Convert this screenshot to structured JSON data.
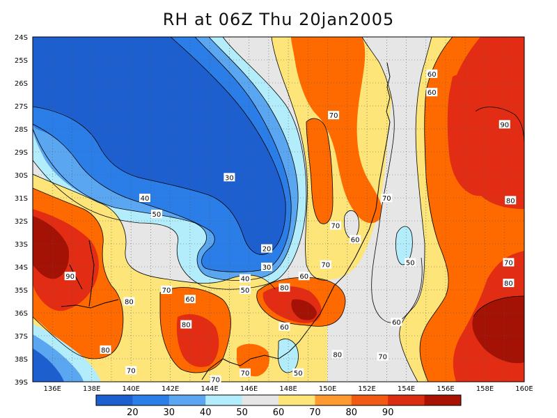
{
  "title": "RH at 06Z Thu 20jan2005",
  "map": {
    "lat_labels": [
      "24S",
      "25S",
      "26S",
      "27S",
      "28S",
      "29S",
      "30S",
      "31S",
      "32S",
      "33S",
      "34S",
      "35S",
      "36S",
      "37S",
      "38S",
      "39S"
    ],
    "lon_labels": [
      "136E",
      "138E",
      "140E",
      "142E",
      "144E",
      "146E",
      "148E",
      "150E",
      "152E",
      "154E",
      "156E",
      "158E",
      "160E"
    ],
    "lon_range": [
      135,
      160
    ],
    "lat_range": [
      -24,
      -39
    ],
    "grid": true
  },
  "contour_labels": [
    {
      "text": "30",
      "lon": 145.0,
      "lat": -30.1
    },
    {
      "text": "40",
      "lon": 140.7,
      "lat": -31.0
    },
    {
      "text": "50",
      "lon": 141.3,
      "lat": -31.7
    },
    {
      "text": "20",
      "lon": 146.9,
      "lat": -33.2
    },
    {
      "text": "30",
      "lon": 146.9,
      "lat": -34.0
    },
    {
      "text": "40",
      "lon": 145.8,
      "lat": -34.5
    },
    {
      "text": "50",
      "lon": 145.8,
      "lat": -35.0
    },
    {
      "text": "60",
      "lon": 143.0,
      "lat": -35.4
    },
    {
      "text": "70",
      "lon": 141.8,
      "lat": -35.0
    },
    {
      "text": "80",
      "lon": 142.8,
      "lat": -36.5
    },
    {
      "text": "80",
      "lon": 147.8,
      "lat": -34.9
    },
    {
      "text": "60",
      "lon": 148.8,
      "lat": -34.4
    },
    {
      "text": "70",
      "lon": 149.9,
      "lat": -33.9
    },
    {
      "text": "60",
      "lon": 147.8,
      "lat": -36.6
    },
    {
      "text": "70",
      "lon": 150.3,
      "lat": -27.4
    },
    {
      "text": "70",
      "lon": 150.4,
      "lat": -32.2
    },
    {
      "text": "60",
      "lon": 151.4,
      "lat": -32.8
    },
    {
      "text": "70",
      "lon": 153.0,
      "lat": -31.0
    },
    {
      "text": "60",
      "lon": 155.3,
      "lat": -25.6
    },
    {
      "text": "60",
      "lon": 155.3,
      "lat": -26.4
    },
    {
      "text": "90",
      "lon": 159.0,
      "lat": -27.8
    },
    {
      "text": "80",
      "lon": 159.3,
      "lat": -31.1
    },
    {
      "text": "70",
      "lon": 159.2,
      "lat": -33.8
    },
    {
      "text": "80",
      "lon": 159.2,
      "lat": -34.7
    },
    {
      "text": "50",
      "lon": 154.2,
      "lat": -33.8
    },
    {
      "text": "60",
      "lon": 153.5,
      "lat": -36.4
    },
    {
      "text": "70",
      "lon": 152.8,
      "lat": -37.9
    },
    {
      "text": "80",
      "lon": 150.5,
      "lat": -37.8
    },
    {
      "text": "50",
      "lon": 148.5,
      "lat": -38.6
    },
    {
      "text": "70",
      "lon": 145.8,
      "lat": -38.6
    },
    {
      "text": "70",
      "lon": 144.3,
      "lat": -38.9
    },
    {
      "text": "80",
      "lon": 138.7,
      "lat": -37.6
    },
    {
      "text": "70",
      "lon": 140.0,
      "lat": -38.5
    },
    {
      "text": "80",
      "lon": 139.9,
      "lat": -35.5
    },
    {
      "text": "90",
      "lon": 136.9,
      "lat": -34.4
    }
  ],
  "colorbar": {
    "labels": [
      "20",
      "30",
      "40",
      "50",
      "60",
      "70",
      "80",
      "90"
    ],
    "colors": [
      "#1e5fcf",
      "#2b7ee8",
      "#5aa6f0",
      "#b3ecfb",
      "#e6e6e6",
      "#fde57a",
      "#fe9a2f",
      "#f05a12",
      "#d92e10",
      "#a81203"
    ]
  },
  "colors": {
    "c20": "#1e5fcf",
    "c30": "#2b7ee8",
    "c40": "#5aa6f0",
    "c50": "#b3ecfb",
    "c60": "#e6e6e6",
    "c70": "#fde57a",
    "c80": "#fe6a00",
    "c90": "#e22d14",
    "c100": "#a41105"
  }
}
